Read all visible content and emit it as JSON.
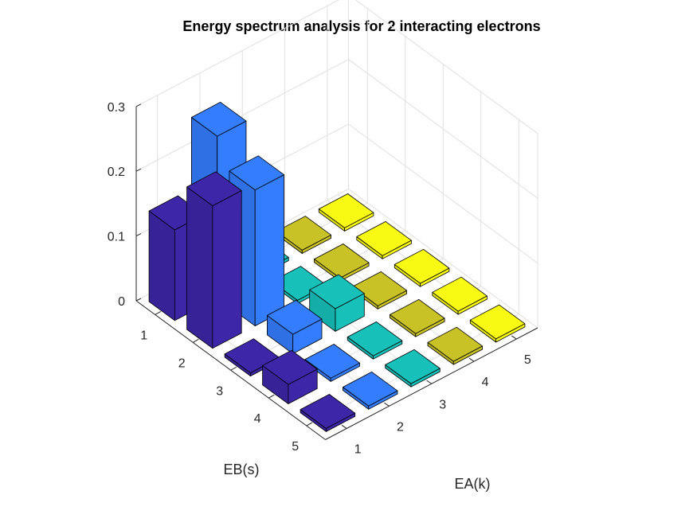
{
  "chart_data": {
    "type": "bar3",
    "title": "Energy spectrum analysis for 2 interacting electrons",
    "xlabel": "EA(k)",
    "ylabel": "EB(s)",
    "zlabel": "",
    "x_categories": [
      "1",
      "2",
      "3",
      "4",
      "5"
    ],
    "y_categories": [
      "1",
      "2",
      "3",
      "4",
      "5"
    ],
    "zlim": [
      0,
      0.3
    ],
    "z_ticks": [
      "0",
      "0.1",
      "0.2",
      "0.3"
    ],
    "grid": true,
    "colormap": "parula (color by EA column)",
    "series_colors": {
      "EA=1": "#3e26a8",
      "EA=2": "#347dfe",
      "EA=3": "#17c0b9",
      "EA=4": "#c9c227",
      "EA=5": "#f9fa14"
    },
    "values": [
      [
        0.14,
        0.25,
        0.005,
        0.005,
        0.005
      ],
      [
        0.22,
        0.21,
        0.005,
        0.005,
        0.005
      ],
      [
        0.005,
        0.03,
        0.035,
        0.005,
        0.005
      ],
      [
        0.03,
        0.005,
        0.005,
        0.005,
        0.005
      ],
      [
        0.005,
        0.005,
        0.005,
        0.005,
        0.005
      ]
    ],
    "values_layout": "values[EB-1][EA-1]"
  }
}
